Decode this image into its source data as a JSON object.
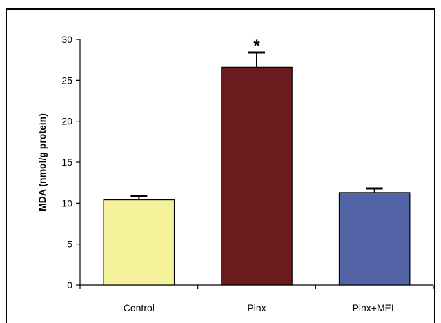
{
  "chart_data": {
    "type": "bar",
    "categories": [
      "Control",
      "Pinx",
      "Pinx+MEL"
    ],
    "values": [
      10.4,
      26.6,
      11.3
    ],
    "errors": [
      0.5,
      1.8,
      0.5
    ],
    "annotations": [
      "",
      "*",
      ""
    ],
    "colors": [
      "#f5f09a",
      "#6b1a1e",
      "#5263a6"
    ],
    "ylabel": "MDA (nmol/g protein)",
    "xlabel": "",
    "ylim": [
      0,
      30
    ],
    "yticks": [
      0,
      5,
      10,
      15,
      20,
      25,
      30
    ],
    "grid": false
  }
}
